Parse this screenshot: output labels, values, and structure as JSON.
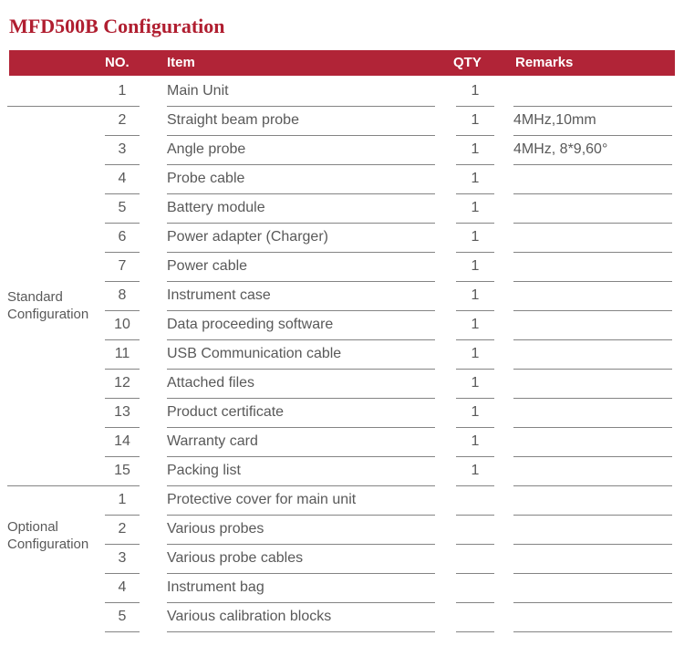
{
  "page": {
    "title": "MFD500B Configuration"
  },
  "table": {
    "headers": {
      "no": "NO.",
      "item": "Item",
      "qty": "QTY",
      "remarks": "Remarks"
    },
    "sections": [
      {
        "label": "Standard Configuration",
        "rows": [
          {
            "no": "1",
            "item": "Main Unit",
            "qty": "1",
            "remarks": ""
          },
          {
            "no": "2",
            "item": "Straight beam probe",
            "qty": "1",
            "remarks": "4MHz,10mm"
          },
          {
            "no": "3",
            "item": "Angle probe",
            "qty": "1",
            "remarks": "4MHz, 8*9,60°"
          },
          {
            "no": "4",
            "item": "Probe cable",
            "qty": "1",
            "remarks": ""
          },
          {
            "no": "5",
            "item": "Battery module",
            "qty": "1",
            "remarks": ""
          },
          {
            "no": "6",
            "item": "Power adapter (Charger)",
            "qty": "1",
            "remarks": ""
          },
          {
            "no": "7",
            "item": "Power cable",
            "qty": "1",
            "remarks": ""
          },
          {
            "no": "8",
            "item": "Instrument case",
            "qty": "1",
            "remarks": ""
          },
          {
            "no": "10",
            "item": "Data proceeding software",
            "qty": "1",
            "remarks": ""
          },
          {
            "no": "11",
            "item": "USB Communication cable",
            "qty": "1",
            "remarks": ""
          },
          {
            "no": "12",
            "item": "Attached files",
            "qty": "1",
            "remarks": ""
          },
          {
            "no": "13",
            "item": "Product certificate",
            "qty": "1",
            "remarks": ""
          },
          {
            "no": "14",
            "item": "Warranty card",
            "qty": "1",
            "remarks": ""
          },
          {
            "no": "15",
            "item": "Packing list",
            "qty": "1",
            "remarks": ""
          }
        ]
      },
      {
        "label": "Optional Configuration",
        "rows": [
          {
            "no": "1",
            "item": "Protective cover for main unit",
            "qty": "",
            "remarks": ""
          },
          {
            "no": "2",
            "item": "Various probes",
            "qty": "",
            "remarks": ""
          },
          {
            "no": "3",
            "item": "Various probe cables",
            "qty": "",
            "remarks": ""
          },
          {
            "no": "4",
            "item": "Instrument bag",
            "qty": "",
            "remarks": ""
          },
          {
            "no": "5",
            "item": "Various calibration blocks",
            "qty": "",
            "remarks": ""
          }
        ]
      }
    ]
  },
  "colors": {
    "accent_header_bg": "#b12437",
    "title_text": "#b01e30",
    "header_text": "#ffffff",
    "body_text": "#595959",
    "line": "#848484"
  }
}
